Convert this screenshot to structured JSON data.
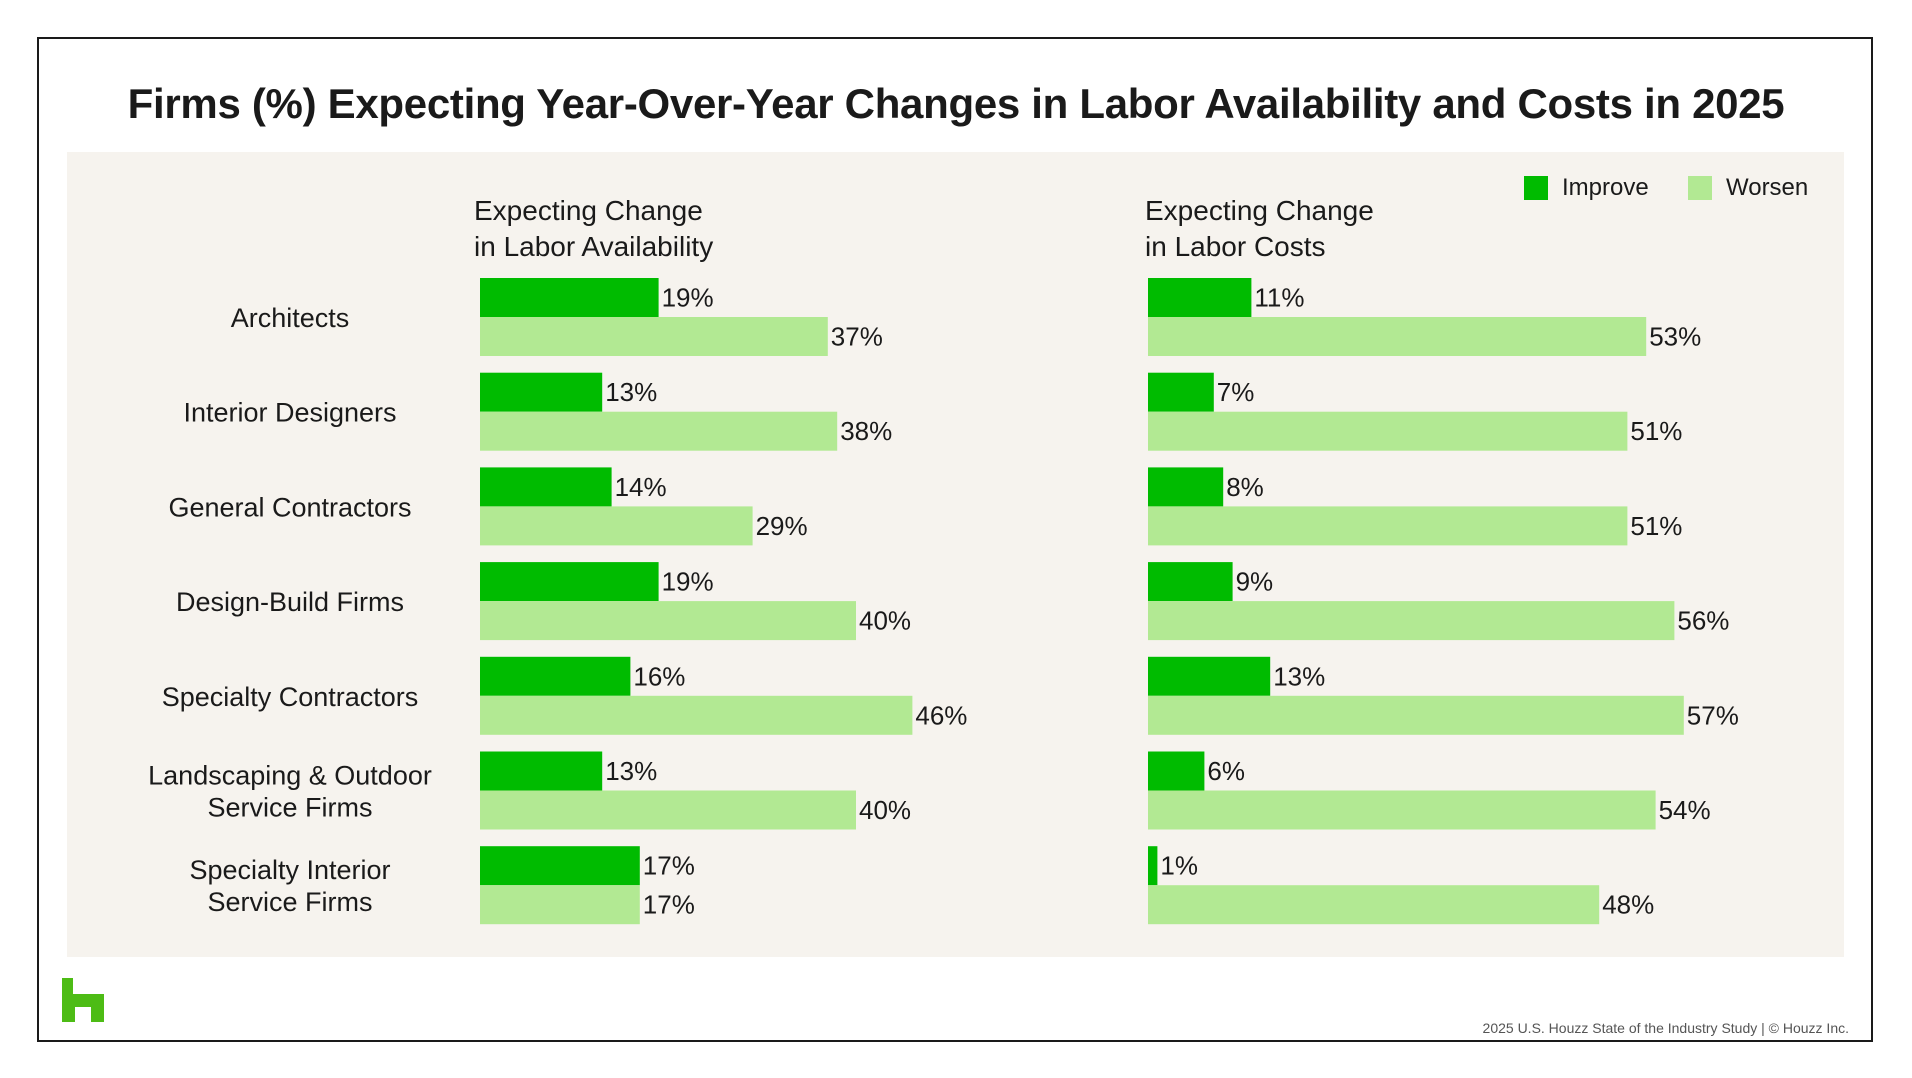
{
  "title": "Firms (%) Expecting Year-Over-Year Changes in Labor Availability and Costs in 2025",
  "legend": {
    "improve": "Improve",
    "worsen": "Worsen"
  },
  "colors": {
    "improve": "#00bb00",
    "worsen": "#b2e993",
    "panel_bg": "#f6f3ee",
    "logo": "#4dbc15"
  },
  "footer": "2025 U.S. Houzz State of the Industry Study  |  © Houzz Inc.",
  "chart_data": {
    "type": "bar",
    "orientation": "horizontal",
    "categories": [
      "Architects",
      "Interior Designers",
      "General Contractors",
      "Design-Build Firms",
      "Specialty Contractors",
      "Landscaping & Outdoor\nService Firms",
      "Specialty Interior\nService Firms"
    ],
    "panels": [
      {
        "title": "Expecting Change\nin Labor Availability",
        "series": [
          {
            "name": "Improve",
            "values": [
              19,
              13,
              14,
              19,
              16,
              13,
              17
            ]
          },
          {
            "name": "Worsen",
            "values": [
              37,
              38,
              29,
              40,
              46,
              40,
              17
            ]
          }
        ]
      },
      {
        "title": "Expecting Change\nin Labor Costs",
        "series": [
          {
            "name": "Improve",
            "values": [
              11,
              7,
              8,
              9,
              13,
              6,
              1
            ]
          },
          {
            "name": "Worsen",
            "values": [
              53,
              51,
              51,
              56,
              57,
              54,
              48
            ]
          }
        ]
      }
    ],
    "value_suffix": "%",
    "legend_position": "top-right",
    "grid": false
  }
}
